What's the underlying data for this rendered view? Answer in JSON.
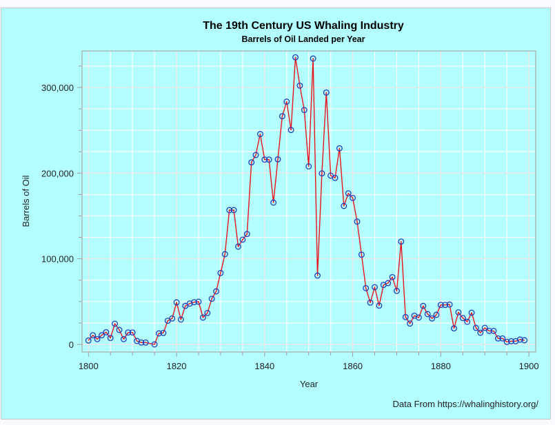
{
  "chart_data": {
    "type": "line",
    "title": "The 19th Century US Whaling Industry",
    "subtitle": "Barrels of Oil Landed per Year",
    "xlabel": "Year",
    "ylabel": "Barrels of Oil",
    "footnote": "Data From https://whalinghistory.org/",
    "xlim": [
      1800,
      1900
    ],
    "ylim": [
      0,
      335000
    ],
    "x_ticks": [
      1800,
      1820,
      1840,
      1860,
      1880,
      1900
    ],
    "x_tick_labels": [
      "1800",
      "1820",
      "1840",
      "1860",
      "1880",
      "1900"
    ],
    "y_ticks": [
      0,
      100000,
      200000,
      300000
    ],
    "y_tick_labels": [
      "0",
      "100,000",
      "200,000",
      "300,000"
    ],
    "grid": true,
    "legend": "none",
    "series": [
      {
        "name": "Barrels of Oil",
        "line_color": "#e8141c",
        "marker_color": "#1f3fbf",
        "marker": "circle",
        "x": [
          1800,
          1801,
          1802,
          1803,
          1804,
          1805,
          1806,
          1807,
          1808,
          1809,
          1810,
          1811,
          1812,
          1813,
          1815,
          1816,
          1817,
          1818,
          1819,
          1820,
          1821,
          1822,
          1823,
          1824,
          1825,
          1826,
          1827,
          1828,
          1829,
          1830,
          1831,
          1832,
          1833,
          1834,
          1835,
          1836,
          1837,
          1838,
          1839,
          1840,
          1841,
          1842,
          1843,
          1844,
          1845,
          1846,
          1847,
          1848,
          1849,
          1850,
          1851,
          1852,
          1853,
          1854,
          1855,
          1856,
          1857,
          1858,
          1859,
          1860,
          1861,
          1862,
          1863,
          1864,
          1865,
          1866,
          1867,
          1868,
          1869,
          1870,
          1871,
          1872,
          1873,
          1874,
          1875,
          1876,
          1877,
          1878,
          1879,
          1880,
          1881,
          1882,
          1883,
          1884,
          1885,
          1886,
          1887,
          1888,
          1889,
          1890,
          1891,
          1892,
          1893,
          1894,
          1895,
          1896,
          1897,
          1898,
          1899
        ],
        "values": [
          4600,
          10700,
          6200,
          10700,
          14200,
          7500,
          24100,
          16900,
          6200,
          13900,
          13900,
          4000,
          2200,
          2200,
          0,
          12900,
          13400,
          27600,
          30300,
          49100,
          29000,
          45000,
          47700,
          49300,
          49900,
          31400,
          36700,
          53300,
          61900,
          83400,
          105400,
          156800,
          156800,
          114200,
          122300,
          128900,
          212600,
          221200,
          245600,
          215800,
          215800,
          165600,
          216100,
          266500,
          283400,
          250400,
          335200,
          302200,
          273700,
          207800,
          333800,
          80400,
          199700,
          294100,
          197100,
          194400,
          229000,
          161700,
          176400,
          171100,
          143400,
          104800,
          65700,
          48800,
          66800,
          45300,
          69400,
          71600,
          78600,
          62500,
          120100,
          31900,
          24400,
          33500,
          31400,
          45000,
          35400,
          30300,
          34600,
          46100,
          46100,
          46600,
          18700,
          37500,
          30800,
          26500,
          37000,
          19300,
          13700,
          19300,
          15800,
          15800,
          7000,
          7000,
          3000,
          3800,
          3800,
          5600,
          4800
        ]
      }
    ]
  }
}
